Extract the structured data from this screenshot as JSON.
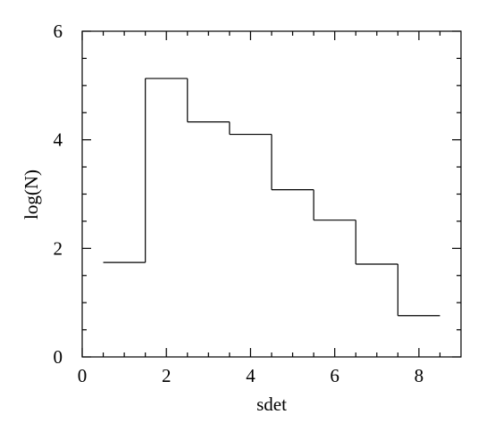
{
  "chart_data": {
    "type": "histogram",
    "x_label": "sdet",
    "y_label": "log(N)",
    "bins": [
      0.5,
      1.5,
      2.5,
      3.5,
      4.5,
      5.5,
      6.5,
      7.5,
      8.5
    ],
    "values": [
      1.74,
      5.13,
      4.33,
      4.1,
      3.08,
      2.52,
      1.71,
      0.76
    ],
    "color": "#000000",
    "xlim": [
      0,
      9
    ],
    "ylim": [
      0,
      6
    ],
    "xticks": [
      0,
      2,
      4,
      6,
      8
    ],
    "yticks": [
      0,
      2,
      4,
      6
    ],
    "xminorticks": [
      0.5,
      1,
      1.5,
      2.5,
      3,
      3.5,
      4.5,
      5,
      5.5,
      6.5,
      7,
      7.5,
      8.5
    ],
    "yminorticks": [
      0.5,
      1,
      1.5,
      2.5,
      3,
      3.5,
      4.5,
      5,
      5.5
    ]
  }
}
